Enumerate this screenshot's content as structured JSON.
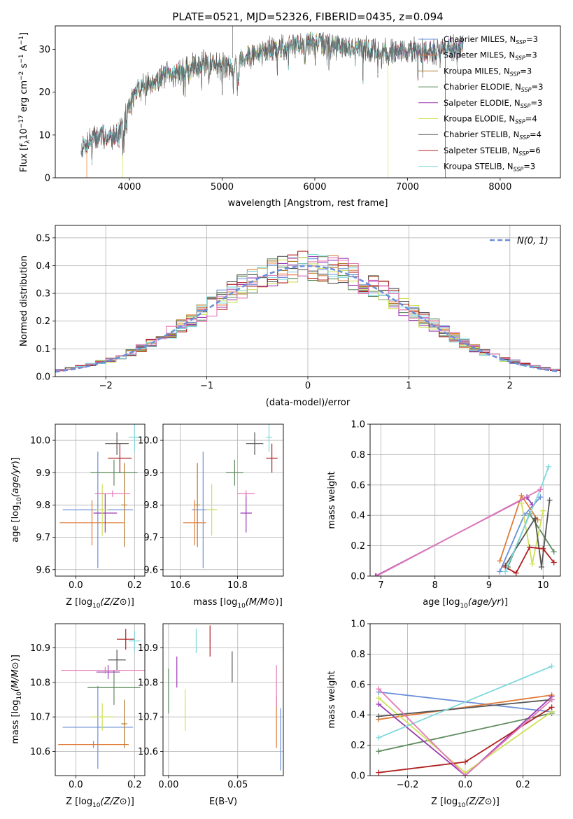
{
  "figure": {
    "title": "PLATE=0521, MJD=52326, FIBERID=0435, z=0.094"
  },
  "colors": {
    "Chabrier MILES": "#6a8fd8",
    "Salpeter MILES": "#e07b39",
    "Kroupa MILES": "#b07a2a",
    "Chabrier ELODIE": "#5c8a5c",
    "Salpeter ELODIE": "#9b3ab2",
    "Kroupa ELODIE": "#cfe05a",
    "Chabrier STELIB": "#555555",
    "Salpeter STELIB": "#b02020",
    "Kroupa STELIB": "#7fd8dc",
    "pink": "#e07ab8",
    "normal_curve": "#6a8fd8"
  },
  "chart_data": [
    {
      "id": "spectrum",
      "type": "line",
      "title": "PLATE=0521, MJD=52326, FIBERID=0435, z=0.094",
      "xlabel": "wavelength [Angstrom, rest frame]",
      "ylabel": "Flux [f_λ 10^-17 erg cm^-2 s^-1 A^-1]",
      "xlim": [
        3200,
        8650
      ],
      "ylim": [
        0,
        35.5
      ],
      "xticks": [
        "4000",
        "5000",
        "6000",
        "7000",
        "8000"
      ],
      "yticks": [
        "0",
        "10",
        "20",
        "30"
      ],
      "legend_position": "top-right",
      "legend": [
        {
          "label": "Chabrier MILES, N",
          "sub": "SSP",
          "suffix": "=3"
        },
        {
          "label": "Salpeter MILES, N",
          "sub": "SSP",
          "suffix": "=3"
        },
        {
          "label": "Kroupa MILES, N",
          "sub": "SSP",
          "suffix": "=3"
        },
        {
          "label": "Chabrier ELODIE, N",
          "sub": "SSP",
          "suffix": "=3"
        },
        {
          "label": "Salpeter ELODIE, N",
          "sub": "SSP",
          "suffix": "=3"
        },
        {
          "label": "Kroupa ELODIE, N",
          "sub": "SSP",
          "suffix": "=4"
        },
        {
          "label": "Chabrier STELIB, N",
          "sub": "SSP",
          "suffix": "=4"
        },
        {
          "label": "Salpeter STELIB, N",
          "sub": "SSP",
          "suffix": "=6"
        },
        {
          "label": "Kroupa STELIB, N",
          "sub": "SSP",
          "suffix": "=3"
        }
      ],
      "continuum_x": [
        3480,
        3600,
        3700,
        3800,
        3900,
        4000,
        4100,
        4200,
        4300,
        4400,
        4500,
        4600,
        4700,
        4800,
        4900,
        5000,
        5100,
        5200,
        5300,
        5400,
        5500,
        5600,
        5700,
        5800,
        5900,
        6000,
        6200,
        6400,
        6600,
        6800,
        7000,
        7200,
        7400,
        7500,
        7600
      ],
      "continuum_y": [
        7,
        9,
        10,
        9.5,
        11,
        17,
        21,
        22,
        23,
        24,
        24.5,
        25,
        26,
        27,
        27,
        26,
        26,
        28,
        28.5,
        29,
        30,
        30,
        31,
        31,
        31.5,
        31.5,
        31,
        30.5,
        30,
        29.5,
        29.5,
        29.5,
        30,
        30.5,
        30.5
      ],
      "model_cutoffs": [
        {
          "model": "Salpeter MILES",
          "x_start": 3540
        },
        {
          "model": "Kroupa ELODIE",
          "x_start": 3925
        },
        {
          "model": "Kroupa ELODIE",
          "x_end": 6790
        },
        {
          "model": "Salpeter STELIB",
          "x_end": 7410
        }
      ]
    },
    {
      "id": "residuals",
      "type": "step",
      "xlabel": "(data-model)/error",
      "ylabel": "Normed distribution",
      "xlim": [
        -2.5,
        2.5
      ],
      "ylim": [
        0,
        0.545
      ],
      "xticks": [
        "−2",
        "−1",
        "0",
        "1",
        "2"
      ],
      "yticks": [
        "0.0",
        "0.1",
        "0.2",
        "0.3",
        "0.4",
        "0.5"
      ],
      "legend_position": "top-right",
      "legend": "N(0, 1)",
      "bin_width": 0.1,
      "normal": {
        "mean": 0,
        "sigma": 1
      }
    },
    {
      "id": "age_vs_Z",
      "type": "errorbar",
      "xlabel": "Z [log10(Z/Z⊙)]",
      "ylabel": "age  [log10(age/yr)]",
      "xlim": [
        -0.07,
        0.235
      ],
      "ylim": [
        9.58,
        10.05
      ],
      "xticks": [
        "0.0",
        "0.2"
      ],
      "yticks": [
        "9.6",
        "9.7",
        "9.8",
        "9.9",
        "10.0"
      ],
      "points": [
        {
          "c": "Chabrier MILES",
          "x": 0.075,
          "xerr": 0.12,
          "y": 9.785,
          "yerr": 0.18
        },
        {
          "c": "Salpeter MILES",
          "x": 0.055,
          "xerr": 0.11,
          "y": 9.745,
          "yerr": 0.07
        },
        {
          "c": "Kroupa MILES",
          "x": 0.165,
          "xerr": 0.01,
          "y": 9.8,
          "yerr": 0.13
        },
        {
          "c": "Chabrier ELODIE",
          "x": 0.13,
          "xerr": 0.08,
          "y": 9.9,
          "yerr": 0.04
        },
        {
          "c": "Salpeter ELODIE",
          "x": 0.1,
          "xerr": 0.04,
          "y": 9.775,
          "yerr": 0.06
        },
        {
          "c": "Kroupa ELODIE",
          "x": 0.09,
          "xerr": 0.02,
          "y": 9.785,
          "yerr": 0.08
        },
        {
          "c": "Chabrier STELIB",
          "x": 0.14,
          "xerr": 0.04,
          "y": 9.99,
          "yerr": 0.035
        },
        {
          "c": "Salpeter STELIB",
          "x": 0.15,
          "xerr": 0.04,
          "y": 9.945,
          "yerr": 0.045
        },
        {
          "c": "Kroupa STELIB",
          "x": 0.2,
          "xerr": 0.02,
          "y": 10.01,
          "yerr": 0.045
        },
        {
          "c": "pink",
          "x": 0.125,
          "xerr": 0.06,
          "y": 9.835,
          "yerr": 0.01
        }
      ]
    },
    {
      "id": "age_vs_mass",
      "type": "errorbar",
      "xlabel": "mass [log10(M/M⊙)]",
      "ylabel": "",
      "xlim": [
        10.54,
        10.96
      ],
      "ylim": [
        9.58,
        10.05
      ],
      "xticks": [
        "10.6",
        "10.8"
      ],
      "yticks": [
        "9.6",
        "9.7",
        "9.8",
        "9.9",
        "10.0"
      ],
      "points": [
        {
          "c": "Chabrier MILES",
          "x": 10.68,
          "xerr": 0.04,
          "y": 9.785,
          "yerr": 0.18
        },
        {
          "c": "Salpeter MILES",
          "x": 10.65,
          "xerr": 0.04,
          "y": 9.745,
          "yerr": 0.07
        },
        {
          "c": "Kroupa MILES",
          "x": 10.66,
          "xerr": 0.01,
          "y": 9.8,
          "yerr": 0.13
        },
        {
          "c": "Chabrier ELODIE",
          "x": 10.79,
          "xerr": 0.03,
          "y": 9.9,
          "yerr": 0.04
        },
        {
          "c": "Salpeter ELODIE",
          "x": 10.83,
          "xerr": 0.02,
          "y": 9.775,
          "yerr": 0.06
        },
        {
          "c": "Kroupa ELODIE",
          "x": 10.71,
          "xerr": 0.02,
          "y": 9.785,
          "yerr": 0.08
        },
        {
          "c": "Chabrier STELIB",
          "x": 10.86,
          "xerr": 0.03,
          "y": 9.99,
          "yerr": 0.035
        },
        {
          "c": "Salpeter STELIB",
          "x": 10.92,
          "xerr": 0.02,
          "y": 9.945,
          "yerr": 0.045
        },
        {
          "c": "Kroupa STELIB",
          "x": 10.91,
          "xerr": 0.01,
          "y": 10.01,
          "yerr": 0.045
        },
        {
          "c": "pink",
          "x": 10.83,
          "xerr": 0.03,
          "y": 9.835,
          "yerr": 0.01
        }
      ]
    },
    {
      "id": "weight_vs_age",
      "type": "line",
      "xlabel": "age  [log10(age/yr)]",
      "ylabel": "mass weight",
      "xlim": [
        6.8,
        10.32
      ],
      "ylim": [
        0,
        1
      ],
      "xticks": [
        "7",
        "8",
        "9",
        "10"
      ],
      "yticks": [
        "0.0",
        "0.2",
        "0.4",
        "0.6",
        "0.8",
        "1.0"
      ],
      "series": [
        {
          "c": "Chabrier MILES",
          "x": [
            9.2,
            9.65,
            9.95
          ],
          "y": [
            0.03,
            0.4,
            0.52
          ]
        },
        {
          "c": "Salpeter MILES",
          "x": [
            9.2,
            9.6,
            9.9
          ],
          "y": [
            0.1,
            0.53,
            0.37
          ]
        },
        {
          "c": "Chabrier ELODIE",
          "x": [
            9.35,
            9.75,
            10.2
          ],
          "y": [
            0.06,
            0.41,
            0.16
          ]
        },
        {
          "c": "Salpeter ELODIE",
          "x": [
            6.9,
            9.7,
            9.8
          ],
          "y": [
            0.0,
            0.52,
            0.47
          ]
        },
        {
          "c": "Kroupa ELODIE",
          "x": [
            9.6,
            9.8,
            10.0
          ],
          "y": [
            0.48,
            0.08,
            0.43
          ]
        },
        {
          "c": "Chabrier STELIB",
          "x": [
            9.3,
            9.85,
            9.97,
            10.12
          ],
          "y": [
            0.07,
            0.38,
            0.06,
            0.5
          ]
        },
        {
          "c": "Salpeter STELIB",
          "x": [
            9.3,
            9.5,
            9.75,
            10.0,
            10.2
          ],
          "y": [
            0.06,
            0.02,
            0.19,
            0.18,
            0.09
          ]
        },
        {
          "c": "Kroupa STELIB",
          "x": [
            9.3,
            9.95,
            10.1
          ],
          "y": [
            0.03,
            0.57,
            0.72
          ]
        },
        {
          "c": "pink",
          "x": [
            6.92,
            9.95
          ],
          "y": [
            0.0,
            0.57
          ]
        }
      ]
    },
    {
      "id": "mass_vs_Z",
      "type": "errorbar",
      "xlabel": "Z [log10(Z/Z⊙)]",
      "ylabel": "mass [log10(M/M⊙)]",
      "xlim": [
        -0.07,
        0.235
      ],
      "ylim": [
        10.53,
        10.97
      ],
      "xticks": [
        "0.0",
        "0.2"
      ],
      "yticks": [
        "10.6",
        "10.7",
        "10.8",
        "10.9"
      ],
      "points": [
        {
          "c": "Chabrier MILES",
          "x": 0.075,
          "xerr": 0.12,
          "y": 10.67,
          "yerr": 0.12
        },
        {
          "c": "Salpeter MILES",
          "x": 0.06,
          "xerr": 0.12,
          "y": 10.62,
          "yerr": 0.01
        },
        {
          "c": "Kroupa MILES",
          "x": 0.165,
          "xerr": 0.01,
          "y": 10.68,
          "yerr": 0.07
        },
        {
          "c": "Chabrier ELODIE",
          "x": 0.13,
          "xerr": 0.09,
          "y": 10.785,
          "yerr": 0.05
        },
        {
          "c": "Salpeter ELODIE",
          "x": 0.11,
          "xerr": 0.04,
          "y": 10.83,
          "yerr": 0.02
        },
        {
          "c": "Kroupa ELODIE",
          "x": 0.09,
          "xerr": 0.04,
          "y": 10.7,
          "yerr": 0.04
        },
        {
          "c": "Chabrier STELIB",
          "x": 0.14,
          "xerr": 0.03,
          "y": 10.865,
          "yerr": 0.03
        },
        {
          "c": "Salpeter STELIB",
          "x": 0.17,
          "xerr": 0.03,
          "y": 10.925,
          "yerr": 0.03
        },
        {
          "c": "Kroupa STELIB",
          "x": 0.2,
          "xerr": 0.02,
          "y": 10.92,
          "yerr": 0.03
        },
        {
          "c": "pink",
          "x": 0.1,
          "xerr": 0.15,
          "y": 10.835,
          "yerr": 0.01
        }
      ]
    },
    {
      "id": "mass_vs_EBV",
      "type": "errorbar",
      "xlabel": "E(B-V)",
      "ylabel": "",
      "xlim": [
        -0.004,
        0.083
      ],
      "ylim": [
        10.53,
        10.97
      ],
      "xticks": [
        "0.00",
        "0.05"
      ],
      "yticks": [
        "10.6",
        "10.7",
        "10.8",
        "10.9"
      ],
      "points": [
        {
          "c": "Chabrier MILES",
          "x": 0.081,
          "xerr": 0.0,
          "y": 10.635,
          "yerr": 0.09
        },
        {
          "c": "Salpeter MILES",
          "x": 0.078,
          "xerr": 0.0,
          "y": 10.685,
          "yerr": 0.075
        },
        {
          "c": "Chabrier ELODIE",
          "x": 0.0,
          "xerr": 0.0,
          "y": 10.775,
          "yerr": 0.065
        },
        {
          "c": "Salpeter ELODIE",
          "x": 0.006,
          "xerr": 0.0,
          "y": 10.83,
          "yerr": 0.045
        },
        {
          "c": "Kroupa ELODIE",
          "x": 0.012,
          "xerr": 0.0,
          "y": 10.72,
          "yerr": 0.06
        },
        {
          "c": "Chabrier STELIB",
          "x": 0.046,
          "xerr": 0.0,
          "y": 10.845,
          "yerr": 0.045
        },
        {
          "c": "Salpeter STELIB",
          "x": 0.03,
          "xerr": 0.0,
          "y": 10.92,
          "yerr": 0.045
        },
        {
          "c": "Kroupa STELIB",
          "x": 0.02,
          "xerr": 0.0,
          "y": 10.92,
          "yerr": 0.035
        },
        {
          "c": "pink",
          "x": 0.078,
          "xerr": 0.0,
          "y": 10.79,
          "yerr": 0.06
        }
      ]
    },
    {
      "id": "weight_vs_Z",
      "type": "line",
      "xlabel": "Z [log10(Z/Z⊙)]",
      "ylabel": "mass weight",
      "xlim": [
        -0.33,
        0.33
      ],
      "ylim": [
        0,
        1
      ],
      "xticks": [
        "−0.2",
        "0.0",
        "0.2"
      ],
      "yticks": [
        "0.0",
        "0.2",
        "0.4",
        "0.6",
        "0.8",
        "1.0"
      ],
      "series": [
        {
          "c": "Chabrier MILES",
          "x": [
            -0.3,
            0.3
          ],
          "y": [
            0.55,
            0.42
          ]
        },
        {
          "c": "Salpeter MILES",
          "x": [
            -0.3,
            0.3
          ],
          "y": [
            0.37,
            0.53
          ]
        },
        {
          "c": "Chabrier ELODIE",
          "x": [
            -0.3,
            0.3
          ],
          "y": [
            0.16,
            0.41
          ]
        },
        {
          "c": "Salpeter ELODIE",
          "x": [
            -0.3,
            0.0,
            0.3
          ],
          "y": [
            0.47,
            0.0,
            0.52
          ]
        },
        {
          "c": "Kroupa ELODIE",
          "x": [
            -0.3,
            0.0,
            0.3
          ],
          "y": [
            0.51,
            0.02,
            0.42
          ]
        },
        {
          "c": "Chabrier STELIB",
          "x": [
            -0.3,
            0.3
          ],
          "y": [
            0.39,
            0.5
          ]
        },
        {
          "c": "Salpeter STELIB",
          "x": [
            -0.3,
            0.0,
            0.3
          ],
          "y": [
            0.02,
            0.09,
            0.45
          ]
        },
        {
          "c": "Kroupa STELIB",
          "x": [
            -0.3,
            0.3
          ],
          "y": [
            0.25,
            0.72
          ]
        },
        {
          "c": "pink",
          "x": [
            -0.3,
            0.0,
            0.3
          ],
          "y": [
            0.57,
            0.0,
            0.5
          ]
        }
      ]
    }
  ]
}
